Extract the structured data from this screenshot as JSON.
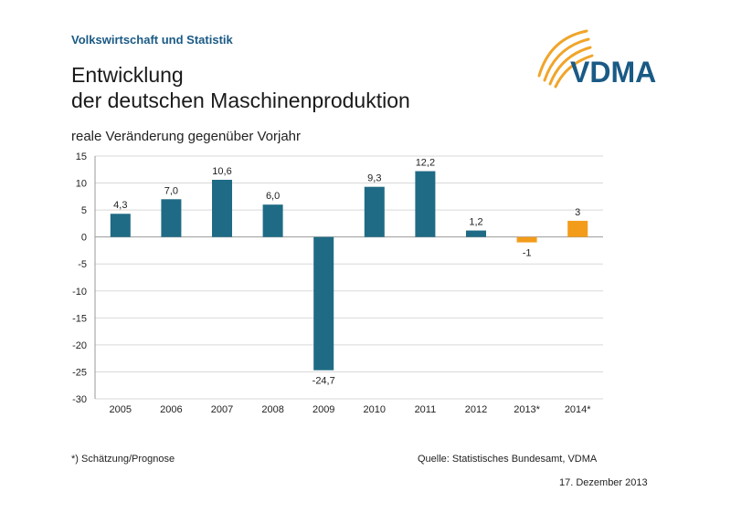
{
  "header": {
    "section_label": "Volkswirtschaft und Statistik",
    "title_line1": "Entwicklung",
    "title_line2": "der deutschen Maschinenproduktion",
    "logo_text": "VDMA"
  },
  "colors": {
    "actual": "#1f6b85",
    "forecast": "#f39c1a",
    "logo_text": "#1a5a85",
    "logo_arc": "#f0a52a",
    "axis": "#999999",
    "grid": "#d9d9d9"
  },
  "chart_data": {
    "type": "bar",
    "title": "reale Veränderung gegenüber Vorjahr",
    "xlabel": "",
    "ylabel": "",
    "ylim": [
      -30,
      15
    ],
    "yticks": [
      15,
      10,
      5,
      0,
      -5,
      -10,
      -15,
      -20,
      -25,
      -30
    ],
    "grid": true,
    "categories": [
      "2005",
      "2006",
      "2007",
      "2008",
      "2009",
      "2010",
      "2011",
      "2012",
      "2013*",
      "2014*"
    ],
    "values": [
      4.3,
      7.0,
      10.6,
      6.0,
      -24.7,
      9.3,
      12.2,
      1.2,
      -1,
      3
    ],
    "value_labels": [
      "4,3",
      "7,0",
      "10,6",
      "6,0",
      "-24,7",
      "9,3",
      "12,2",
      "1,2",
      "-1",
      "3"
    ],
    "forecast": [
      false,
      false,
      false,
      false,
      false,
      false,
      false,
      false,
      true,
      true
    ]
  },
  "footer": {
    "footnote": "*) Schätzung/Prognose",
    "source": "Quelle: Statistisches Bundesamt, VDMA",
    "date": "17. Dezember 2013"
  }
}
